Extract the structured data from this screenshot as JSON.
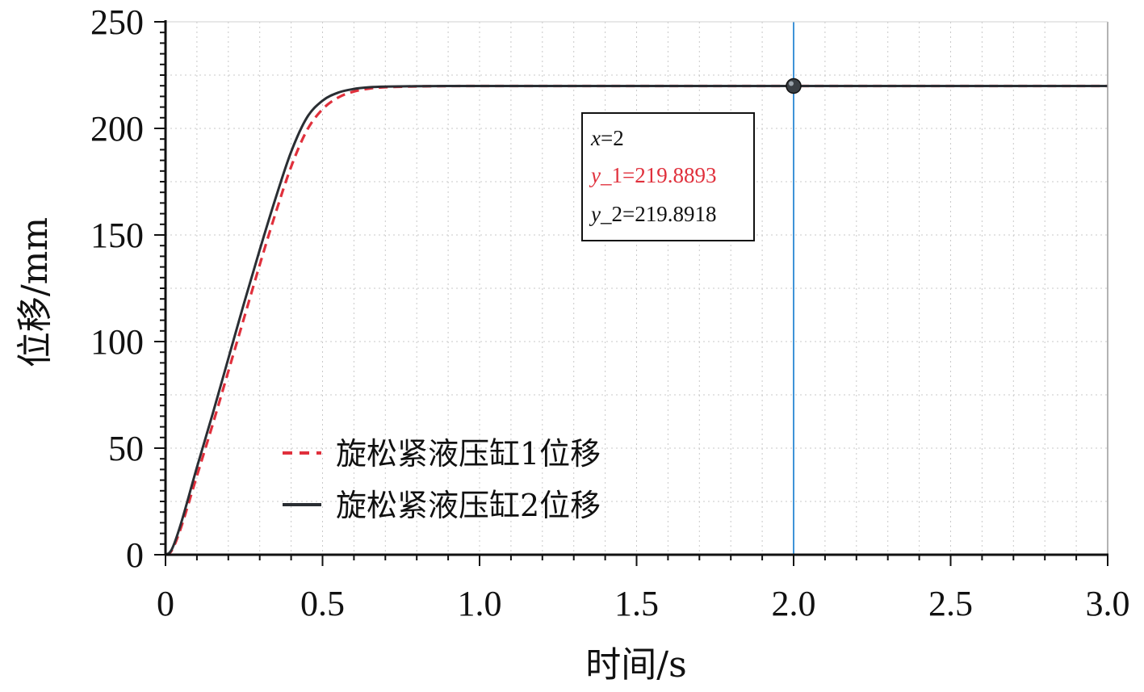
{
  "chart_data": {
    "type": "line",
    "xlabel": "时间/s",
    "ylabel": "位移/mm",
    "xlim": [
      0,
      3.0
    ],
    "ylim": [
      0,
      250
    ],
    "x_ticks": [
      "0",
      "0.5",
      "1.0",
      "1.5",
      "2.0",
      "2.5",
      "3.0"
    ],
    "x_tick_values": [
      0,
      0.5,
      1.0,
      1.5,
      2.0,
      2.5,
      3.0
    ],
    "y_ticks": [
      "0",
      "50",
      "100",
      "150",
      "200",
      "250"
    ],
    "y_tick_values": [
      0,
      50,
      100,
      150,
      200,
      250
    ],
    "grid": true,
    "legend_position": "bottom-left",
    "series": [
      {
        "name": "旋松紧液压缸1位移",
        "color": "#e0303c",
        "style": "dashed",
        "x": [
          0,
          0.02,
          0.05,
          0.1,
          0.15,
          0.2,
          0.25,
          0.3,
          0.35,
          0.4,
          0.45,
          0.5,
          0.55,
          0.6,
          0.65,
          0.7,
          0.8,
          0.9,
          1.0,
          1.5,
          2.0,
          2.5,
          3.0
        ],
        "y": [
          0,
          2,
          13,
          37,
          61,
          86,
          111,
          136,
          160,
          182,
          199,
          209,
          214.5,
          217.3,
          218.7,
          219.3,
          219.7,
          219.85,
          219.88,
          219.889,
          219.8893,
          219.889,
          219.889
        ]
      },
      {
        "name": "旋松紧液压缸2位移",
        "color": "#2a2e33",
        "style": "solid",
        "x": [
          0,
          0.02,
          0.05,
          0.1,
          0.15,
          0.2,
          0.25,
          0.3,
          0.35,
          0.4,
          0.45,
          0.5,
          0.55,
          0.6,
          0.65,
          0.7,
          0.8,
          0.9,
          1.0,
          1.5,
          2.0,
          2.5,
          3.0
        ],
        "y": [
          0,
          2.5,
          15,
          41,
          66,
          92,
          118,
          143,
          167,
          189,
          205,
          213,
          216.8,
          218.5,
          219.3,
          219.6,
          219.8,
          219.87,
          219.89,
          219.891,
          219.8918,
          219.891,
          219.891
        ]
      }
    ],
    "cursor": {
      "x": 2,
      "color": "#3f93d8",
      "marker_y": 219.8918
    },
    "readout": {
      "x_label": "x",
      "x_value": "=2",
      "y1_label": "y",
      "y1_value": "_1=219.8893",
      "y1_color": "#e0303c",
      "y2_label": "y",
      "y2_value": "_2=219.8918"
    }
  }
}
